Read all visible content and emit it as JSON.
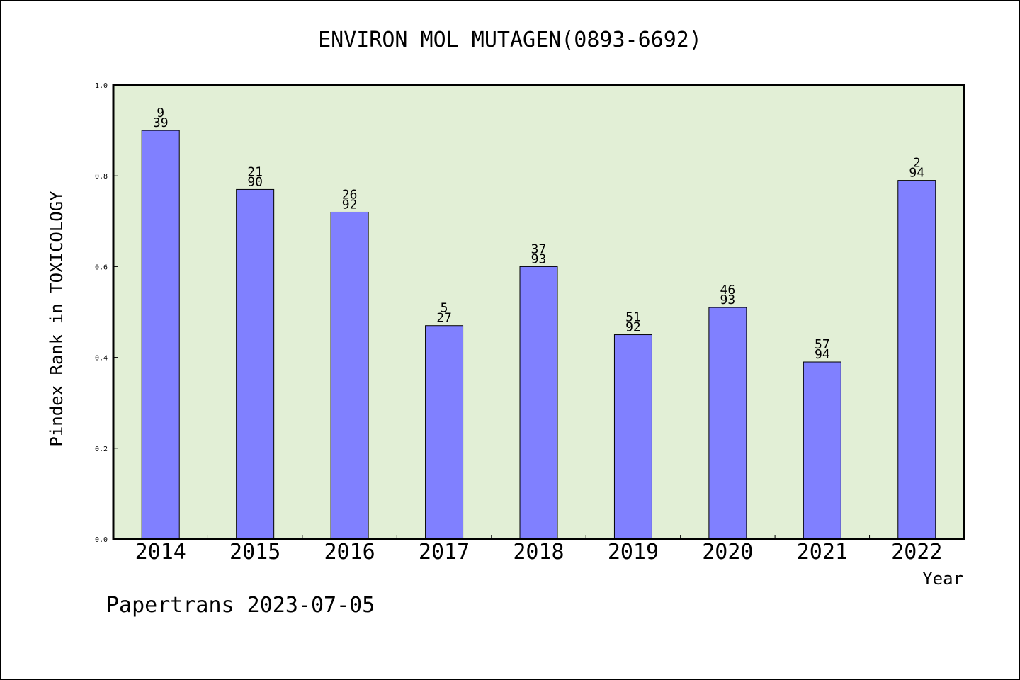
{
  "chart_data": {
    "type": "bar",
    "title": "ENVIRON MOL MUTAGEN(0893-6692)",
    "xlabel": "Year",
    "ylabel": "Pindex Rank in TOXICOLOGY",
    "categories": [
      "2014",
      "2015",
      "2016",
      "2017",
      "2018",
      "2019",
      "2020",
      "2021",
      "2022"
    ],
    "values": [
      0.9,
      0.77,
      0.72,
      0.47,
      0.6,
      0.45,
      0.51,
      0.39,
      0.79
    ],
    "rank": [
      "9",
      "21",
      "26",
      "5",
      "37",
      "51",
      "46",
      "57",
      "2"
    ],
    "total": [
      "39",
      "90",
      "92",
      "27",
      "93",
      "92",
      "93",
      "94",
      "94"
    ],
    "ylim": [
      0,
      1.0
    ],
    "yticks": [
      "0.0",
      "0.2",
      "0.4",
      "0.6",
      "0.8",
      "1.0"
    ],
    "grid": false,
    "legend": "none",
    "colors": {
      "bar": "#8080ff",
      "plot_bg": "#e2efd6",
      "axis": "#000000"
    }
  },
  "footer": {
    "credit": "Papertrans 2023-07-05"
  }
}
